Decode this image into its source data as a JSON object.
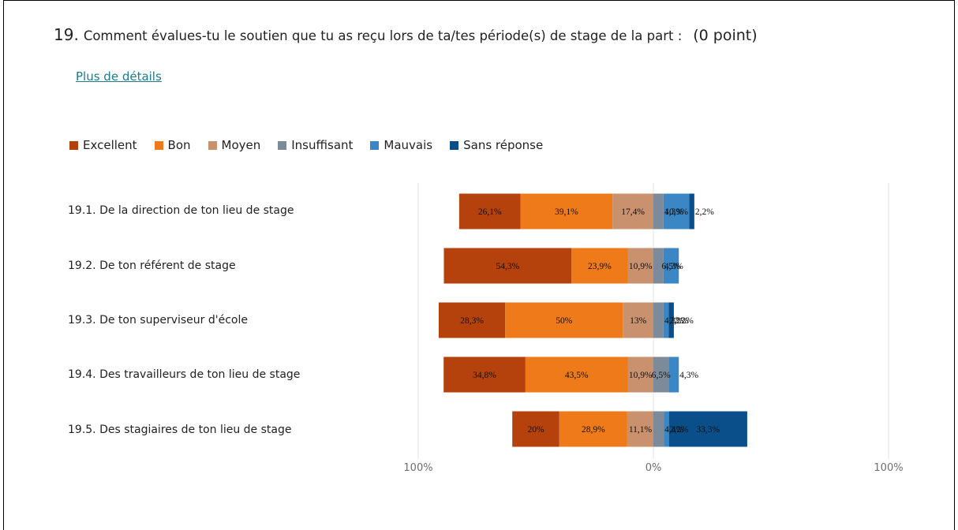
{
  "question": {
    "number": "19.",
    "text": "Comment évalues-tu le soutien que tu as reçu lors de ta/tes période(s) de stage de la part :",
    "points": "(0 point)"
  },
  "details_link": "Plus de détails",
  "chart_data": {
    "type": "bar",
    "orientation": "horizontal",
    "stacking": "diverging",
    "legend_position": "top",
    "categories": [
      "19.1. De la direction de ton lieu de stage",
      "19.2. De ton référent de stage",
      "19.3. De ton superviseur d'école",
      "19.4. Des travailleurs de ton lieu de stage",
      "19.5. Des stagiaires de ton lieu de stage"
    ],
    "series": [
      {
        "name": "Excellent",
        "color": "#b5410c",
        "values": [
          26.1,
          54.3,
          28.3,
          34.8,
          20
        ],
        "labels": [
          "26,1%",
          "54,3%",
          "28,3%",
          "34,8%",
          "20%"
        ]
      },
      {
        "name": "Bon",
        "color": "#ef7a1a",
        "values": [
          39.1,
          23.9,
          50,
          43.5,
          28.9
        ],
        "labels": [
          "39,1%",
          "23,9%",
          "50%",
          "43,5%",
          "28,9%"
        ]
      },
      {
        "name": "Moyen",
        "color": "#c9916e",
        "values": [
          17.4,
          10.9,
          13,
          10.9,
          11.1
        ],
        "labels": [
          "17,4%",
          "10,9%",
          "13%",
          "10,9%",
          "11,1%"
        ]
      },
      {
        "name": "Insuffisant",
        "color": "#7d8a99",
        "values": [
          4.3,
          4.3,
          4.3,
          6.5,
          4.4
        ],
        "labels": [
          "4,3%",
          "4,3%",
          "4,3%",
          "6,5%",
          "4,4%"
        ]
      },
      {
        "name": "Mauvais",
        "color": "#3b86c4",
        "values": [
          10.9,
          6.5,
          2.2,
          4.3,
          2.2
        ],
        "labels": [
          "10,9%",
          "6,5%",
          "2,2%",
          "4,3%",
          "2,2%"
        ]
      },
      {
        "name": "Sans réponse",
        "color": "#0b4f8a",
        "values": [
          2.2,
          0,
          2.2,
          0,
          33.3
        ],
        "labels": [
          "2,2%",
          "",
          "2.2%",
          "",
          "33,3%"
        ]
      }
    ],
    "xlim": [
      -100,
      100
    ],
    "x_tick_labels": [
      "100%",
      "0%",
      "100%"
    ],
    "grid": true
  }
}
